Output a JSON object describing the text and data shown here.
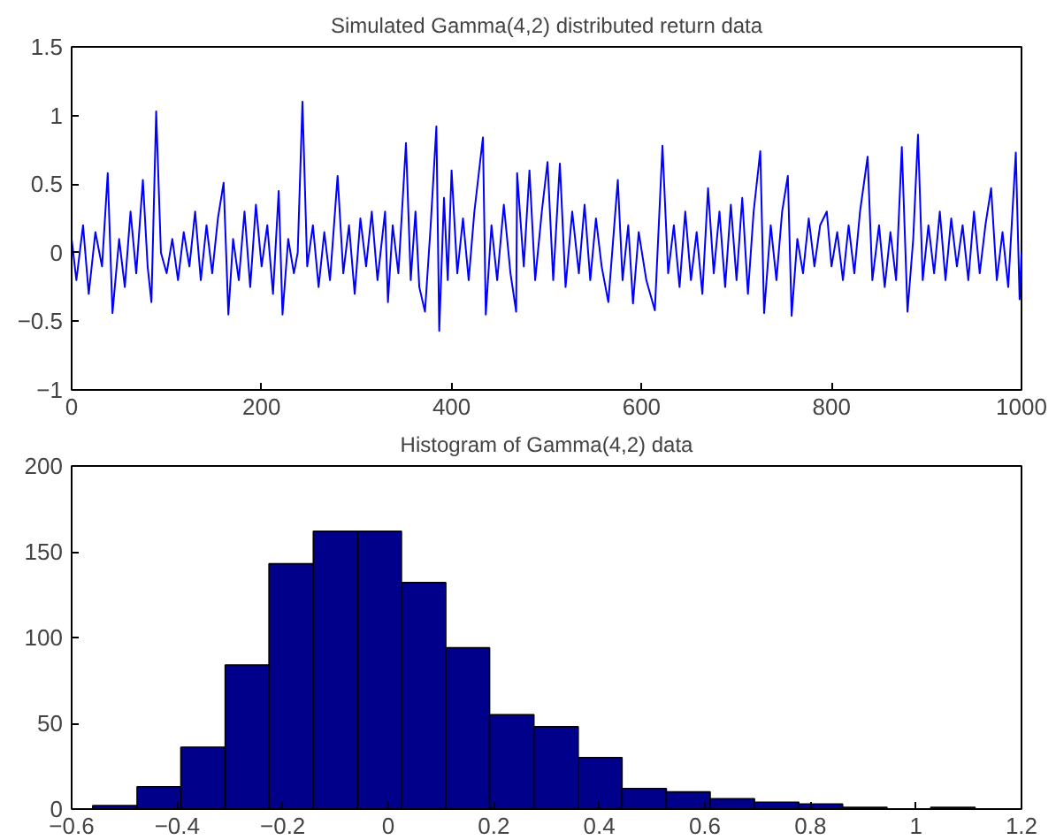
{
  "chart_data": [
    {
      "type": "line",
      "title": "Simulated Gamma(4,2) distributed return data",
      "xlim": [
        0,
        1000
      ],
      "ylim": [
        -1,
        1.5
      ],
      "xticks": [
        0,
        200,
        400,
        600,
        800,
        1000
      ],
      "yticks": [
        -1,
        -0.5,
        0,
        0.5,
        1,
        1.5
      ],
      "grid": false,
      "marker": "none",
      "line_style": "solid",
      "x": [
        0,
        5,
        12,
        18,
        25,
        32,
        38,
        43,
        50,
        56,
        62,
        68,
        75,
        80,
        84,
        89,
        94,
        100,
        106,
        112,
        118,
        124,
        130,
        136,
        142,
        148,
        154,
        160,
        165,
        170,
        176,
        182,
        188,
        194,
        200,
        206,
        212,
        218,
        222,
        228,
        234,
        238,
        243,
        248,
        254,
        260,
        266,
        272,
        280,
        286,
        292,
        298,
        304,
        310,
        316,
        322,
        330,
        333,
        338,
        344,
        352,
        357,
        362,
        366,
        372,
        378,
        384,
        387,
        392,
        396,
        400,
        406,
        412,
        418,
        424,
        433,
        436,
        442,
        448,
        455,
        462,
        468,
        469,
        476,
        482,
        488,
        495,
        501,
        507,
        514,
        520,
        527,
        534,
        540,
        546,
        552,
        558,
        565,
        575,
        580,
        586,
        591,
        597,
        605,
        614,
        622,
        628,
        634,
        640,
        646,
        652,
        658,
        664,
        670,
        676,
        682,
        688,
        694,
        700,
        706,
        712,
        718,
        725,
        729,
        736,
        742,
        748,
        754,
        758,
        764,
        770,
        776,
        782,
        788,
        795,
        800,
        806,
        812,
        818,
        824,
        830,
        838,
        843,
        850,
        856,
        862,
        868,
        874,
        880,
        886,
        891,
        896,
        902,
        908,
        914,
        920,
        926,
        932,
        938,
        944,
        950,
        956,
        962,
        968,
        974,
        980,
        986,
        994,
        998,
        1000
      ],
      "series": [
        {
          "color": "#0000ff",
          "values": [
            0.1,
            -0.2,
            0.2,
            -0.3,
            0.15,
            -0.1,
            0.58,
            -0.44,
            0.1,
            -0.25,
            0.3,
            -0.15,
            0.53,
            -0.1,
            -0.36,
            1.03,
            0.0,
            -0.15,
            0.1,
            -0.2,
            0.15,
            -0.1,
            0.3,
            -0.2,
            0.2,
            -0.15,
            0.25,
            0.51,
            -0.45,
            0.1,
            -0.2,
            0.3,
            -0.25,
            0.35,
            -0.1,
            0.2,
            -0.3,
            0.45,
            -0.45,
            0.1,
            -0.15,
            0.0,
            1.1,
            -0.1,
            0.2,
            -0.25,
            0.15,
            -0.2,
            0.56,
            -0.15,
            0.2,
            -0.3,
            0.25,
            -0.1,
            0.3,
            -0.2,
            0.3,
            -0.36,
            0.2,
            -0.15,
            0.8,
            -0.2,
            0.3,
            -0.25,
            -0.43,
            0.2,
            0.92,
            -0.57,
            0.4,
            -0.2,
            0.6,
            -0.15,
            0.25,
            -0.2,
            0.3,
            0.84,
            -0.45,
            0.2,
            -0.2,
            0.35,
            -0.15,
            -0.43,
            0.58,
            -0.1,
            0.6,
            -0.2,
            0.3,
            0.66,
            -0.2,
            0.65,
            -0.25,
            0.3,
            -0.15,
            0.35,
            -0.2,
            0.25,
            -0.1,
            -0.36,
            0.53,
            -0.2,
            0.2,
            -0.37,
            0.15,
            -0.2,
            -0.42,
            0.78,
            -0.15,
            0.2,
            -0.25,
            0.3,
            -0.2,
            0.15,
            -0.3,
            0.47,
            -0.15,
            0.3,
            -0.25,
            0.35,
            -0.2,
            0.4,
            -0.3,
            0.3,
            0.74,
            -0.44,
            0.2,
            -0.2,
            0.3,
            0.56,
            -0.46,
            0.1,
            -0.15,
            0.25,
            -0.1,
            0.2,
            0.3,
            -0.1,
            0.15,
            -0.2,
            0.2,
            -0.15,
            0.3,
            0.7,
            -0.2,
            0.2,
            -0.25,
            0.15,
            -0.2,
            0.77,
            -0.43,
            0.1,
            0.86,
            -0.2,
            0.2,
            -0.15,
            0.3,
            -0.2,
            0.25,
            -0.1,
            0.2,
            -0.2,
            0.3,
            -0.15,
            0.2,
            0.47,
            -0.2,
            0.15,
            -0.25,
            0.73,
            -0.34,
            0.0
          ]
        }
      ]
    },
    {
      "type": "histogram",
      "title": "Histogram of Gamma(4,2) data",
      "xlim": [
        -0.6,
        1.2
      ],
      "ylim": [
        0,
        200
      ],
      "grid": false,
      "xticks": [
        {
          "value": -0.6,
          "label": "−0.6"
        },
        {
          "value": -0.4,
          "label": "−0.4"
        },
        {
          "value": -0.2,
          "label": "−0.2"
        },
        0,
        0.2,
        0.4,
        0.6,
        0.8,
        1,
        1.2
      ],
      "yticks": [
        0,
        50,
        100,
        150,
        200
      ],
      "bins": [
        -0.56,
        -0.476,
        -0.393,
        -0.309,
        -0.226,
        -0.142,
        -0.058,
        0.025,
        0.109,
        0.192,
        0.276,
        0.36,
        0.443,
        0.527,
        0.61,
        0.694,
        0.778,
        0.861,
        0.945,
        1.028,
        1.112
      ],
      "series": [
        {
          "color": "#00008b",
          "values": [
            2,
            13,
            36,
            84,
            143,
            162,
            162,
            132,
            94,
            55,
            48,
            30,
            12,
            10,
            6,
            4,
            3,
            1,
            0,
            1
          ]
        }
      ]
    }
  ]
}
